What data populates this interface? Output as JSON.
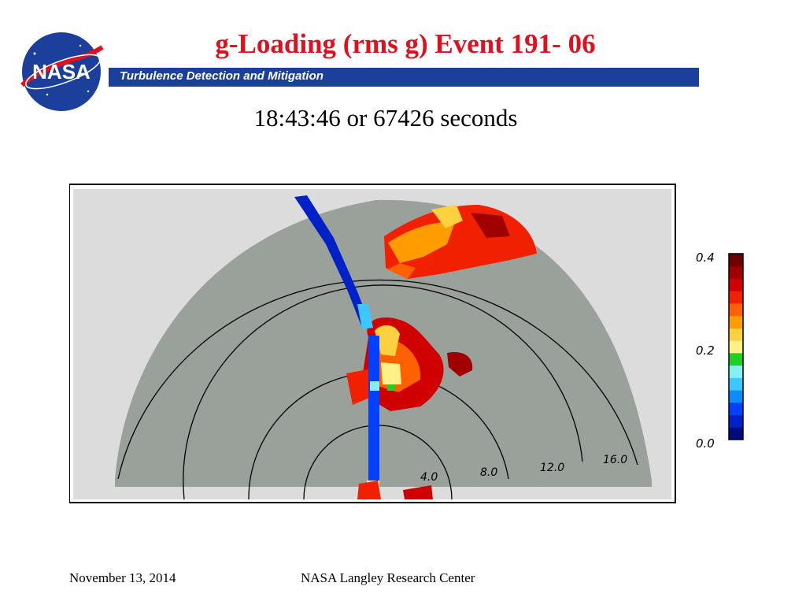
{
  "header": {
    "title": "g-Loading (rms g) Event 191- 06",
    "band_label": "Turbulence Detection and Mitigation",
    "logo_text": "NASA"
  },
  "subtitle": "18:43:46 or 67426 seconds",
  "radar": {
    "range_labels": [
      "4.0",
      "8.0",
      "12.0",
      "16.0"
    ]
  },
  "colorbar": {
    "ticks": [
      "0.4",
      "0.2",
      "0.0"
    ],
    "colors": [
      "#000c7a",
      "#0020c8",
      "#0040ff",
      "#0a8cff",
      "#3cc8ff",
      "#86f0f0",
      "#20d020",
      "#fff088",
      "#ffd040",
      "#ff9c00",
      "#ff6000",
      "#f02000",
      "#d00000",
      "#a00000",
      "#700000"
    ]
  },
  "footer": {
    "date": "November 13, 2014",
    "center": "NASA Langley Research Center"
  },
  "colors": {
    "title": "#e0101e",
    "band": "#1b3f9a",
    "radar_gray": "#9aa09a"
  }
}
